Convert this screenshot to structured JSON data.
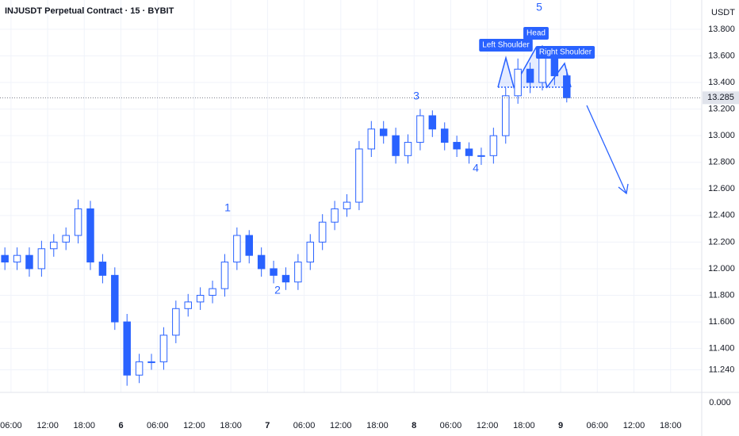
{
  "chart_data": {
    "type": "candlestick",
    "title": "INJUSDT Perpetual Contract · 15 · BYBIT",
    "currency": "USDT",
    "color": "#2962ff",
    "grid": true,
    "last_price": 13.285,
    "bottom_label": "0.000",
    "wave_labels": [
      "1",
      "2",
      "3",
      "4",
      "5"
    ],
    "pattern_labels": [
      "Left Shoulder",
      "Head",
      "Right Shoulder"
    ],
    "xlim": [
      4.2,
      119.1
    ],
    "ylim": [
      11.07,
      14.02
    ],
    "xticks": [
      {
        "value": 6,
        "label": "06:00"
      },
      {
        "value": 12,
        "label": "12:00"
      },
      {
        "value": 18,
        "label": "18:00"
      },
      {
        "value": 24,
        "label": "6"
      },
      {
        "value": 30,
        "label": "06:00"
      },
      {
        "value": 36,
        "label": "12:00"
      },
      {
        "value": 42,
        "label": "18:00"
      },
      {
        "value": 48,
        "label": "7"
      },
      {
        "value": 54,
        "label": "06:00"
      },
      {
        "value": 60,
        "label": "12:00"
      },
      {
        "value": 66,
        "label": "18:00"
      },
      {
        "value": 72,
        "label": "8"
      },
      {
        "value": 78,
        "label": "06:00"
      },
      {
        "value": 84,
        "label": "12:00"
      },
      {
        "value": 90,
        "label": "18:00"
      },
      {
        "value": 96,
        "label": "9"
      },
      {
        "value": 102,
        "label": "06:00"
      },
      {
        "value": 108,
        "label": "12:00"
      },
      {
        "value": 114,
        "label": "18:00"
      }
    ],
    "yticks": [
      {
        "value": 11.24,
        "label": "11.240"
      },
      {
        "value": 11.4,
        "label": "11.400"
      },
      {
        "value": 11.6,
        "label": "11.600"
      },
      {
        "value": 11.8,
        "label": "11.800"
      },
      {
        "value": 12,
        "label": "12.000"
      },
      {
        "value": 12.2,
        "label": "12.200"
      },
      {
        "value": 12.4,
        "label": "12.400"
      },
      {
        "value": 12.6,
        "label": "12.600"
      },
      {
        "value": 12.8,
        "label": "12.800"
      },
      {
        "value": 13,
        "label": "13.000"
      },
      {
        "value": 13.2,
        "label": "13.200"
      },
      {
        "value": 13.4,
        "label": "13.400"
      },
      {
        "value": 13.6,
        "label": "13.600"
      },
      {
        "value": 13.8,
        "label": "13.800"
      }
    ],
    "x": [
      4,
      6,
      8,
      10,
      12,
      14,
      16,
      18,
      20,
      22,
      24,
      26,
      28,
      30,
      32,
      34,
      36,
      38,
      40,
      42,
      44,
      46,
      48,
      50,
      52,
      54,
      56,
      58,
      60,
      62,
      64,
      66,
      68,
      70,
      72,
      74,
      76,
      78,
      80,
      82,
      84,
      86,
      88,
      90,
      92,
      94,
      96
    ],
    "open": [
      12.1,
      12.05,
      12.1,
      12.0,
      12.15,
      12.2,
      12.25,
      12.45,
      12.05,
      11.95,
      11.6,
      11.2,
      11.3,
      11.3,
      11.5,
      11.7,
      11.75,
      11.8,
      11.85,
      12.05,
      12.25,
      12.1,
      12.0,
      11.95,
      11.9,
      12.05,
      12.2,
      12.35,
      12.45,
      12.5,
      12.9,
      13.05,
      13.0,
      12.85,
      12.95,
      13.15,
      13.05,
      12.95,
      12.9,
      12.85,
      12.85,
      13.0,
      13.3,
      13.5,
      13.4,
      13.6,
      13.45
    ],
    "high": [
      12.16,
      12.16,
      12.16,
      12.21,
      12.26,
      12.31,
      12.52,
      12.51,
      12.11,
      12.01,
      11.66,
      11.36,
      11.36,
      11.56,
      11.76,
      11.81,
      11.86,
      11.91,
      12.11,
      12.31,
      12.29,
      12.16,
      12.06,
      12.01,
      12.11,
      12.26,
      12.41,
      12.51,
      12.56,
      12.96,
      13.11,
      13.11,
      13.06,
      13.01,
      13.2,
      13.19,
      13.1,
      13.0,
      12.95,
      12.91,
      13.06,
      13.36,
      13.58,
      13.55,
      13.68,
      13.63,
      13.5
    ],
    "low": [
      11.99,
      11.99,
      11.94,
      11.94,
      12.09,
      12.14,
      12.19,
      11.99,
      11.89,
      11.54,
      11.12,
      11.14,
      11.24,
      11.24,
      11.44,
      11.64,
      11.69,
      11.74,
      11.79,
      11.99,
      12.04,
      11.94,
      11.89,
      11.84,
      11.84,
      11.99,
      12.14,
      12.29,
      12.39,
      12.44,
      12.84,
      12.94,
      12.79,
      12.79,
      12.89,
      12.99,
      12.89,
      12.84,
      12.79,
      12.78,
      12.79,
      12.94,
      13.24,
      13.32,
      13.34,
      13.38,
      13.25
    ],
    "close": [
      12.05,
      12.1,
      12.0,
      12.15,
      12.2,
      12.25,
      12.45,
      12.05,
      11.95,
      11.6,
      11.2,
      11.3,
      11.3,
      11.5,
      11.7,
      11.75,
      11.8,
      11.85,
      12.05,
      12.25,
      12.1,
      12.0,
      11.95,
      11.9,
      12.05,
      12.2,
      12.35,
      12.45,
      12.5,
      12.9,
      13.05,
      13.0,
      12.85,
      12.95,
      13.15,
      13.05,
      12.95,
      12.9,
      12.85,
      12.85,
      13.0,
      13.3,
      13.5,
      13.4,
      13.6,
      13.45,
      13.285
    ]
  }
}
